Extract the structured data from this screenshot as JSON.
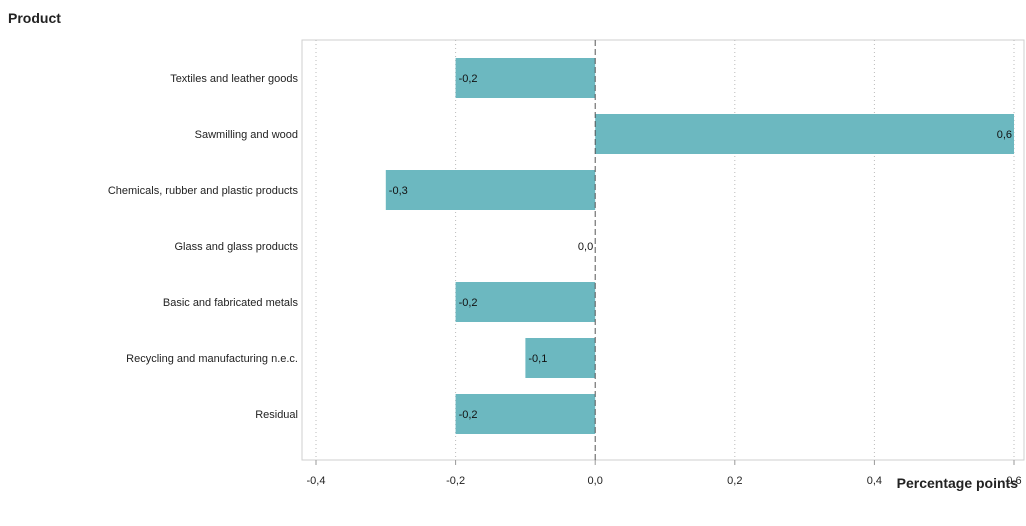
{
  "chart_data": {
    "type": "bar",
    "orientation": "horizontal",
    "title": "",
    "ylabel": "Product",
    "xlabel": "Percentage points",
    "categories": [
      "Textiles and leather goods",
      "Sawmilling and wood",
      "Chemicals, rubber and plastic products",
      "Glass and glass products",
      "Basic and fabricated metals",
      "Recycling and manufacturing n.e.c.",
      "Residual"
    ],
    "values": [
      -0.2,
      0.6,
      -0.3,
      0.0,
      -0.2,
      -0.1,
      -0.2
    ],
    "value_labels": [
      "-0,2",
      "0,6",
      "-0,3",
      "0,0",
      "-0,2",
      "-0,1",
      "-0,2"
    ],
    "xlim": [
      -0.4,
      0.6
    ],
    "x_ticks": [
      -0.4,
      -0.2,
      0.0,
      0.2,
      0.4,
      0.6
    ],
    "x_tick_labels": [
      "-0,4",
      "-0,2",
      "0,0",
      "0,2",
      "0,4",
      "0,6"
    ],
    "grid": "vertical dotted",
    "legend": "none",
    "colors": {
      "bar": "#6cb8c0",
      "zero_line": "#555555",
      "grid": "#bbbbbb",
      "frame": "#cfcfcf"
    }
  }
}
